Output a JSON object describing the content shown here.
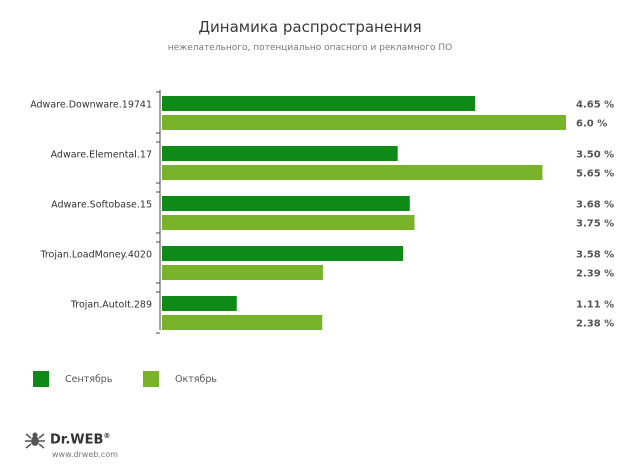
{
  "title": "Динамика распространения",
  "subtitle": "нежелательного, потенциально опасного и рекламного ПО",
  "colors": {
    "september": "#0f8a18",
    "october": "#79b32a"
  },
  "legend": {
    "september": "Сентябрь",
    "october": "Октябрь"
  },
  "footer": {
    "brand": "Dr.WEB",
    "reg": "®",
    "site": "www.drweb.com"
  },
  "chart_data": {
    "type": "bar",
    "orientation": "horizontal",
    "categories": [
      "Adware.Downware.19741",
      "Adware.Elemental.17",
      "Adware.Softobase.15",
      "Trojan.LoadMoney.4020",
      "Trojan.AutoIt.289"
    ],
    "series": [
      {
        "name": "Сентябрь",
        "values": [
          4.65,
          3.5,
          3.68,
          3.58,
          1.11
        ],
        "labels": [
          "4.65 %",
          "3.50 %",
          "3.68 %",
          "3.58 %",
          "1.11 %"
        ]
      },
      {
        "name": "Октябрь",
        "values": [
          6.0,
          5.65,
          3.75,
          2.39,
          2.38
        ],
        "labels": [
          "6.0 %",
          "5.65 %",
          "3.75 %",
          "2.39 %",
          "2.38 %"
        ]
      }
    ],
    "title": "Динамика распространения",
    "subtitle": "нежелательного, потенциально опасного и рекламного ПО",
    "xlim": [
      0,
      6.0
    ],
    "grid": false,
    "legend_position": "bottom-left"
  }
}
